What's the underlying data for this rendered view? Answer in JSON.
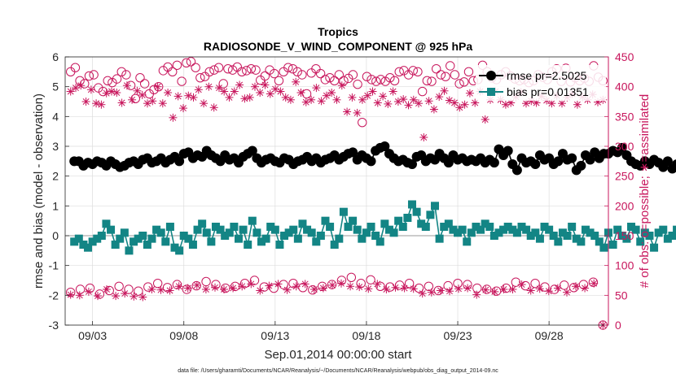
{
  "colors": {
    "rmse": "#000000",
    "bias": "#138585",
    "obs": "#c8175d",
    "zero_line": "#9a9a9a",
    "grid": "#dddddd"
  },
  "chart_data": {
    "type": "line",
    "title": "Tropics",
    "subtitle": "RADIOSONDE_V_WIND_COMPONENT @ 925 hPa",
    "xlabel": "Sep.01,2014 00:00:00 start",
    "ylabel_left": "rmse and bias (model - observation)",
    "ylabel_right": "# of obs: o=possible; ∗=assimilated",
    "footer": "data file: /Users/gharamti/Documents/NCAR/Reanalysis/~/Documents/NCAR/Reanalysis/webpub/obs_diag_output_2014-09.nc",
    "x_units": "days since Sep.01,2014 00:00",
    "xlim": [
      0.5,
      30.25
    ],
    "ylim_left": [
      -3,
      6
    ],
    "ylim_right": [
      0,
      450
    ],
    "x_ticks": [
      {
        "pos": 2,
        "label": "09/03"
      },
      {
        "pos": 7,
        "label": "09/08"
      },
      {
        "pos": 12,
        "label": "09/13"
      },
      {
        "pos": 17,
        "label": "09/18"
      },
      {
        "pos": 22,
        "label": "09/23"
      },
      {
        "pos": 27,
        "label": "09/28"
      }
    ],
    "y_ticks_left": [
      "-3",
      "-2",
      "-1",
      "0",
      "1",
      "2",
      "3",
      "4",
      "5",
      "6"
    ],
    "y_ticks_right": [
      "0",
      "50",
      "100",
      "150",
      "200",
      "250",
      "300",
      "350",
      "400",
      "450"
    ],
    "grid": true,
    "legend_position": "top-right",
    "legend": [
      {
        "name": "rmse",
        "label": "rmse pr=2.5025"
      },
      {
        "name": "bias",
        "label": "bias pr=0.01351"
      }
    ],
    "x_step_days": 0.25,
    "series": [
      {
        "name": "rmse",
        "axis": "left",
        "marker": "filled-circle",
        "values": [
          2.5,
          2.5,
          2.35,
          2.45,
          2.4,
          2.5,
          2.45,
          2.35,
          2.5,
          2.4,
          2.3,
          2.35,
          2.45,
          2.5,
          2.4,
          2.55,
          2.6,
          2.45,
          2.5,
          2.6,
          2.45,
          2.55,
          2.65,
          2.5,
          2.75,
          2.8,
          2.6,
          2.7,
          2.65,
          2.85,
          2.7,
          2.6,
          2.5,
          2.7,
          2.55,
          2.6,
          2.45,
          2.65,
          2.75,
          2.85,
          2.6,
          2.45,
          2.55,
          2.6,
          2.5,
          2.45,
          2.6,
          2.55,
          2.4,
          2.5,
          2.55,
          2.65,
          2.5,
          2.6,
          2.45,
          2.55,
          2.6,
          2.7,
          2.55,
          2.65,
          2.75,
          2.8,
          2.55,
          2.7,
          2.6,
          2.5,
          2.85,
          2.95,
          3.0,
          2.75,
          2.6,
          2.5,
          2.55,
          2.45,
          2.4,
          2.65,
          2.7,
          2.5,
          2.6,
          2.55,
          2.75,
          2.6,
          2.45,
          2.7,
          2.55,
          2.6,
          2.5,
          2.55,
          2.5,
          2.6,
          2.45,
          2.55,
          2.45,
          2.9,
          2.7,
          2.85,
          2.4,
          2.2,
          2.6,
          2.45,
          2.5,
          2.4,
          2.7,
          2.55,
          2.6,
          2.4,
          2.5,
          2.75,
          2.55,
          2.6,
          2.2,
          2.35,
          2.7,
          2.55,
          2.8,
          2.6,
          2.75,
          2.75,
          2.85,
          2.8,
          2.95,
          2.7,
          2.5,
          2.4,
          2.35,
          2.5,
          2.4,
          2.55,
          2.45,
          2.3,
          2.5,
          2.25,
          2.4,
          2.5,
          2.45,
          2.2,
          2.35,
          2.4,
          2.6,
          2.45,
          2.55,
          2.5,
          2.3,
          2.5,
          2.45,
          2.55,
          2.4,
          2.5,
          2.45,
          2.0
        ]
      },
      {
        "name": "bias",
        "axis": "left",
        "marker": "filled-square",
        "values": [
          -0.2,
          -0.1,
          -0.3,
          -0.4,
          -0.2,
          -0.1,
          0.0,
          0.4,
          0.2,
          -0.3,
          -0.1,
          0.1,
          -0.5,
          -0.2,
          -0.1,
          0.0,
          -0.3,
          -0.1,
          0.2,
          0.1,
          -0.2,
          0.3,
          -0.4,
          -0.5,
          0.0,
          -0.1,
          -0.3,
          0.2,
          0.4,
          0.1,
          -0.2,
          0.3,
          0.2,
          0.0,
          0.1,
          0.3,
          -0.1,
          0.2,
          -0.3,
          0.5,
          0.1,
          -0.2,
          -0.1,
          0.3,
          0.2,
          -0.3,
          0.0,
          0.1,
          0.2,
          -0.1,
          0.4,
          0.2,
          0.1,
          -0.2,
          0.0,
          0.5,
          0.3,
          -0.3,
          -0.1,
          0.8,
          0.3,
          0.5,
          0.2,
          -0.1,
          0.1,
          0.3,
          0.0,
          -0.2,
          0.4,
          0.2,
          0.1,
          0.5,
          0.3,
          0.6,
          1.05,
          0.8,
          0.4,
          0.3,
          0.7,
          1.0,
          -0.1,
          0.3,
          0.4,
          0.2,
          0.1,
          0.2,
          -0.2,
          0.1,
          0.3,
          0.2,
          0.4,
          0.3,
          0.0,
          0.1,
          0.2,
          0.3,
          0.2,
          0.1,
          0.3,
          0.2,
          0.0,
          0.1,
          -0.1,
          0.3,
          0.2,
          0.0,
          -0.2,
          0.1,
          0.0,
          0.3,
          -0.1,
          -0.2,
          0.2,
          0.1,
          0.0,
          -0.2,
          -0.4,
          0.1,
          -0.3,
          0.2,
          0.0,
          -0.1,
          0.3,
          0.2,
          -0.2,
          0.1,
          0.0,
          -0.4,
          0.1,
          0.2,
          -0.1,
          0.0,
          0.2,
          -0.2,
          0.1,
          0.3,
          0.0,
          -0.1,
          0.1,
          0.2,
          -0.2,
          0.3,
          0.1,
          0.0,
          -0.3,
          -0.2,
          0.0,
          -0.2
        ]
      },
      {
        "name": "obs_possible",
        "axis": "right",
        "marker": "open-circle",
        "values": [
          425,
          432,
          410,
          405,
          418,
          420,
          398,
          392,
          410,
          407,
          413,
          425,
          420,
          402,
          380,
          415,
          405,
          388,
          395,
          400,
          427,
          433,
          425,
          436,
          409,
          440,
          442,
          432,
          415,
          417,
          425,
          428,
          432,
          405,
          430,
          428,
          433,
          425,
          427,
          430,
          428,
          411,
          418,
          428,
          422,
          410,
          425,
          432,
          430,
          425,
          420,
          388,
          423,
          430,
          422,
          412,
          415,
          410,
          420,
          410,
          414,
          420,
          404,
          340,
          417,
          412,
          409,
          412,
          409,
          415,
          410,
          425,
          427,
          420,
          427,
          425,
          392,
          410,
          409,
          430,
          420,
          417,
          435,
          420,
          405,
          408,
          425,
          410,
          412,
          436,
          425,
          415,
          412,
          420,
          425,
          418,
          413,
          410,
          412,
          407,
          410,
          420,
          416,
          412,
          425,
          430,
          409,
          431,
          408,
          415,
          410,
          414,
          409,
          435,
          416,
          410
        ]
      },
      {
        "name": "obs_assimilated",
        "axis": "right",
        "marker": "asterisk",
        "values": [
          392,
          398,
          402,
          375,
          395,
          372,
          370,
          389,
          392,
          390,
          373,
          402,
          378,
          393,
          386,
          372,
          376,
          400,
          372,
          390,
          348,
          384,
          364,
          385,
          382,
          395,
          372,
          400,
          365,
          398,
          392,
          382,
          392,
          403,
          380,
          382,
          400,
          390,
          403,
          388,
          396,
          392,
          382,
          378,
          408,
          390,
          374,
          378,
          398,
          376,
          385,
          390,
          378,
          402,
          358,
          382,
          356,
          378,
          385,
          392,
          373,
          384,
          371,
          392,
          375,
          379,
          369,
          378,
          372,
          315,
          376,
          362,
          383,
          393,
          377,
          373,
          365,
          370,
          389,
          373,
          392,
          345,
          378,
          392,
          378,
          370,
          373,
          383,
          391,
          372,
          376,
          373,
          384,
          377,
          372,
          385,
          372,
          382,
          388,
          370,
          383,
          378,
          387,
          374,
          378
        ]
      },
      {
        "name": "obs_possible_low",
        "axis": "right",
        "marker": "open-circle",
        "values": [
          55,
          60,
          62,
          52,
          58,
          65,
          60,
          57,
          64,
          70,
          63,
          68,
          60,
          66,
          73,
          68,
          62,
          65,
          70,
          75,
          64,
          62,
          68,
          70,
          63,
          59,
          65,
          68,
          75,
          80,
          70,
          76,
          65,
          64,
          67,
          70,
          62,
          65,
          58,
          66,
          70,
          68,
          62,
          60,
          57,
          62,
          72,
          66,
          70,
          64,
          60,
          67,
          63,
          68,
          72,
          0
        ]
      },
      {
        "name": "obs_assimilated_low",
        "axis": "right",
        "marker": "asterisk",
        "values": [
          51,
          50,
          56,
          49,
          60,
          49,
          53,
          48,
          47,
          60,
          59,
          58,
          65,
          62,
          67,
          60,
          63,
          60,
          62,
          65,
          69,
          58,
          66,
          69,
          59,
          65,
          69,
          60,
          62,
          67,
          70,
          65,
          64,
          61,
          69,
          60,
          63,
          62,
          61,
          53,
          55,
          58,
          57,
          61,
          62,
          51,
          59,
          56,
          60,
          60,
          68,
          58,
          61,
          57,
          62,
          55,
          65,
          62,
          70,
          0
        ]
      }
    ]
  }
}
